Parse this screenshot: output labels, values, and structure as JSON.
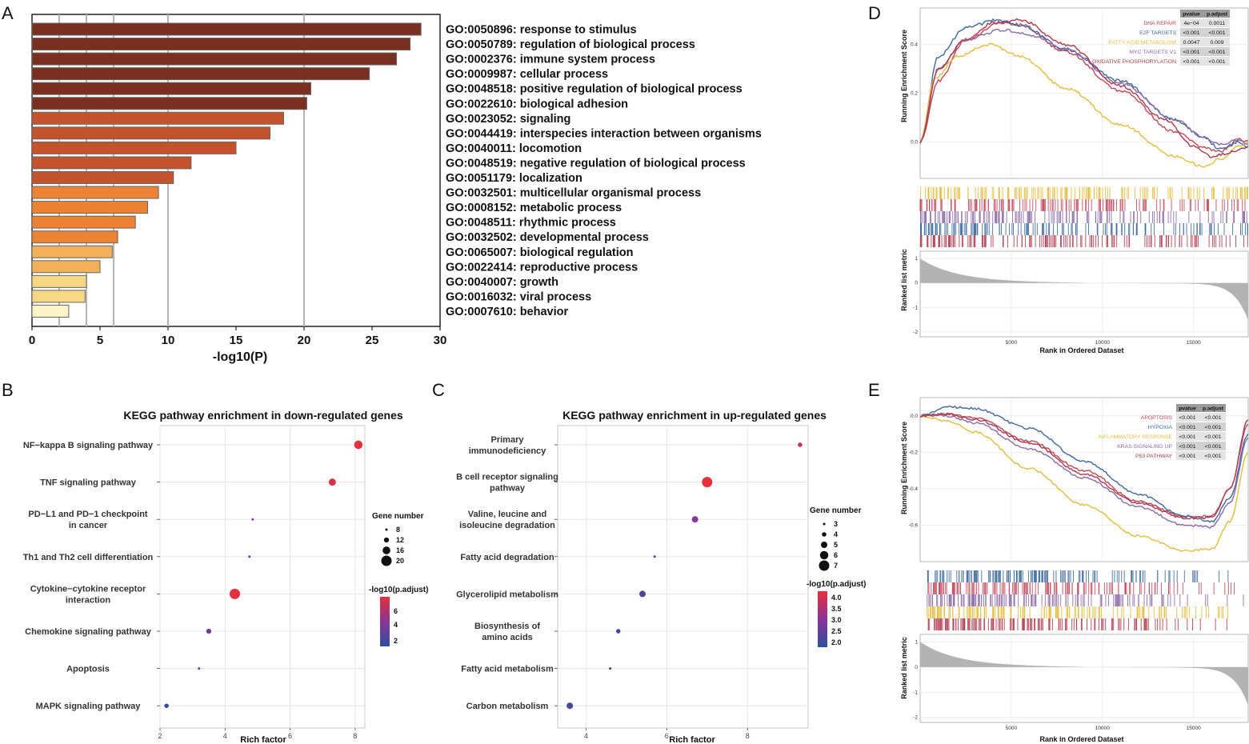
{
  "panel_labels": {
    "a": "A",
    "b": "B",
    "c": "C",
    "d": "D",
    "e": "E"
  },
  "chart_data": [
    {
      "id": "A",
      "type": "bar",
      "orientation": "horizontal",
      "xlabel": "-log10(P)",
      "xlim": [
        0,
        30
      ],
      "xticks": [
        0,
        5,
        10,
        15,
        20,
        25,
        30
      ],
      "gridlines": [
        2,
        4,
        6,
        10,
        20
      ],
      "categories": [
        "GO:0050896: response to stimulus",
        "GO:0050789: regulation of biological process",
        "GO:0002376: immune system process",
        "GO:0009987: cellular process",
        "GO:0048518: positive regulation of biological process",
        "GO:0022610: biological adhesion",
        "GO:0023052: signaling",
        "GO:0044419: interspecies interaction between organisms",
        "GO:0040011: locomotion",
        "GO:0048519: negative regulation of biological process",
        "GO:0051179: localization",
        "GO:0032501: multicellular organismal process",
        "GO:0008152: metabolic process",
        "GO:0048511: rhythmic process",
        "GO:0032502: developmental process",
        "GO:0065007: biological regulation",
        "GO:0022414: reproductive process",
        "GO:0040007: growth",
        "GO:0016032: viral process",
        "GO:0007610: behavior"
      ],
      "values": [
        28.6,
        27.8,
        26.8,
        24.8,
        20.5,
        20.2,
        18.5,
        17.5,
        15.0,
        11.7,
        10.4,
        9.3,
        8.5,
        7.6,
        6.3,
        5.9,
        5.0,
        4.0,
        3.9,
        2.7
      ],
      "colors": [
        "#7a3021",
        "#7a3021",
        "#7a3021",
        "#7a3021",
        "#7a3021",
        "#7a3021",
        "#c4522a",
        "#c4522a",
        "#c4522a",
        "#c4522a",
        "#c4522a",
        "#ec8234",
        "#ec8234",
        "#ec8234",
        "#ec8234",
        "#f2b156",
        "#f2b156",
        "#f6d884",
        "#f6d884",
        "#fdf3c8"
      ]
    },
    {
      "id": "B",
      "type": "scatter",
      "title": "KEGG pathway enrichment in down-regulated genes",
      "xlabel": "Rich factor",
      "xlim": [
        2,
        8.3
      ],
      "xticks": [
        2,
        4,
        6,
        8
      ],
      "categories": [
        "NF−kappa B signaling pathway",
        "TNF signaling pathway",
        "PD−L1 and PD−1 checkpoint in cancer",
        "Th1 and Th2 cell differentiation",
        "Cytokine−cytokine receptor interaction",
        "Chemokine signaling pathway",
        "Apoptosis",
        "MAPK signaling pathway"
      ],
      "label_lines": [
        [
          "NF−kappa B signaling pathway"
        ],
        [
          "TNF signaling pathway"
        ],
        [
          "PD−L1 and PD−1 checkpoint",
          "in cancer"
        ],
        [
          "Th1 and Th2 cell differentiation"
        ],
        [
          "Cytokine−cytokine receptor",
          "interaction"
        ],
        [
          "Chemokine signaling pathway"
        ],
        [
          "Apoptosis"
        ],
        [
          "MAPK signaling pathway"
        ]
      ],
      "x": [
        8.1,
        7.3,
        4.85,
        4.75,
        4.3,
        3.5,
        3.2,
        2.2
      ],
      "gene_number": [
        17,
        15,
        8,
        8,
        20,
        12,
        8,
        11
      ],
      "neg_log10_padj": [
        6.5,
        6.2,
        4.2,
        4.0,
        6.4,
        3.9,
        3.5,
        2.3
      ],
      "legend_size_title": "Gene number",
      "legend_sizes": [
        8,
        12,
        16,
        20
      ],
      "legend_color_title": "-log10(p.adjust)",
      "legend_color_ticks": [
        "6",
        "4",
        "2"
      ]
    },
    {
      "id": "C",
      "type": "scatter",
      "title": "KEGG pathway enrichment in up-regulated genes",
      "xlabel": "Rich factor",
      "xlim": [
        3.3,
        9.5
      ],
      "xticks": [
        4,
        6,
        8
      ],
      "categories": [
        "Primary immunodeficiency",
        "B cell receptor signaling pathway",
        "Valine, leucine and isoleucine degradation",
        "Fatty acid degradation",
        "Glycerolipid metabolism",
        "Biosynthesis of amino acids",
        "Fatty acid metabolism",
        "Carbon metabolism"
      ],
      "label_lines": [
        [
          "Primary",
          "immunodeficiency"
        ],
        [
          "B cell receptor signaling",
          "pathway"
        ],
        [
          "Valine, leucine and",
          "isoleucine degradation"
        ],
        [
          "Fatty acid degradation"
        ],
        [
          "Glycerolipid metabolism"
        ],
        [
          "Biosynthesis of",
          "amino acids"
        ],
        [
          "Fatty acid metabolism"
        ],
        [
          "Carbon metabolism"
        ]
      ],
      "x": [
        9.3,
        7.0,
        6.7,
        5.7,
        5.4,
        4.8,
        4.6,
        3.6
      ],
      "gene_number": [
        4,
        7,
        5,
        3,
        5,
        4,
        3,
        5
      ],
      "neg_log10_padj": [
        3.7,
        4.1,
        3.1,
        2.2,
        2.5,
        2.3,
        2.1,
        2.4
      ],
      "legend_size_title": "Gene number",
      "legend_sizes": [
        3,
        4,
        5,
        6,
        7
      ],
      "legend_color_title": "-log10(p.adjust)",
      "legend_color_ticks": [
        "4.0",
        "3.5",
        "3.0",
        "2.5",
        "2.0"
      ]
    },
    {
      "id": "D",
      "type": "line",
      "ylabel": "Running Enrichment Score",
      "ylabel2": "Ranked list metric",
      "xlabel": "Rank in Ordered Dataset",
      "xlim": [
        0,
        18000
      ],
      "xticks": [
        "5000",
        "10000",
        "15000"
      ],
      "yticks": [
        "0.4",
        "0.2",
        "0.0"
      ],
      "yticks2": [
        "1",
        "0",
        "-1",
        "-2"
      ],
      "table_headers": [
        "pvalue",
        "p.adjust"
      ],
      "series": [
        {
          "name": "DNA REPAIR",
          "color": "#c0485a",
          "pvalue": "4e−04",
          "padjust": "0.0011",
          "x": [
            0,
            1000,
            2500,
            4500,
            5500,
            8000,
            11000,
            14000,
            15500,
            16500,
            17500,
            18000
          ],
          "y": [
            0.0,
            0.25,
            0.42,
            0.49,
            0.48,
            0.37,
            0.21,
            0.04,
            -0.02,
            -0.04,
            0.01,
            0.0
          ]
        },
        {
          "name": "E2F TARGETS",
          "color": "#3e6a9e",
          "pvalue": "<0.001",
          "padjust": "<0.001",
          "x": [
            0,
            1000,
            2500,
            4200,
            5500,
            8000,
            11000,
            14000,
            15500,
            16500,
            17500,
            18000
          ],
          "y": [
            0.0,
            0.35,
            0.47,
            0.5,
            0.48,
            0.38,
            0.25,
            0.09,
            0.02,
            -0.03,
            0.0,
            -0.02
          ]
        },
        {
          "name": "FATTY ACID METABOLISM",
          "color": "#e4bd3e",
          "pvalue": "0.0047",
          "padjust": "0.009",
          "x": [
            0,
            800,
            2000,
            3800,
            5500,
            8000,
            11000,
            14000,
            15500,
            16500,
            17500,
            18000
          ],
          "y": [
            0.0,
            0.26,
            0.35,
            0.4,
            0.35,
            0.22,
            0.07,
            -0.06,
            -0.1,
            -0.07,
            -0.02,
            0.0
          ]
        },
        {
          "name": "MYC TARGETS V1",
          "color": "#8c6aa8",
          "pvalue": "<0.001",
          "padjust": "<0.001",
          "x": [
            0,
            1000,
            2500,
            4500,
            6000,
            8000,
            11000,
            14000,
            15500,
            16500,
            17500,
            18000
          ],
          "y": [
            0.0,
            0.3,
            0.42,
            0.46,
            0.44,
            0.38,
            0.24,
            0.09,
            0.02,
            -0.01,
            0.01,
            -0.01
          ]
        },
        {
          "name": "OXIDATIVE PHOSPHORYLATION",
          "color": "#b03a4e",
          "pvalue": "<0.001",
          "padjust": "<0.001",
          "x": [
            0,
            1000,
            2500,
            4000,
            5500,
            8000,
            11000,
            13500,
            15000,
            16000,
            17200,
            18000
          ],
          "y": [
            0.0,
            0.3,
            0.42,
            0.49,
            0.5,
            0.4,
            0.23,
            0.09,
            -0.02,
            -0.06,
            -0.04,
            -0.02
          ]
        }
      ]
    },
    {
      "id": "E",
      "type": "line",
      "ylabel": "Running Enrichment Score",
      "ylabel2": "Ranked list metric",
      "xlabel": "Rank in Ordered Dataset",
      "xlim": [
        0,
        18000
      ],
      "xticks": [
        "5000",
        "10000",
        "15000"
      ],
      "yticks": [
        "0.0",
        "-0.2",
        "-0.4",
        "-0.6"
      ],
      "yticks2": [
        "1",
        "0",
        "-1",
        "-2"
      ],
      "table_headers": [
        "pvalue",
        "p.adjust"
      ],
      "series": [
        {
          "name": "APOPTOSIS",
          "color": "#c0485a",
          "pvalue": "<0.001",
          "padjust": "<0.001",
          "x": [
            0,
            1500,
            3000,
            6000,
            9000,
            12000,
            14500,
            16000,
            17000,
            18000
          ],
          "y": [
            0.0,
            0.01,
            -0.01,
            -0.14,
            -0.3,
            -0.47,
            -0.55,
            -0.55,
            -0.4,
            -0.05
          ]
        },
        {
          "name": "HYPOXIA",
          "color": "#3e6a9e",
          "pvalue": "<0.001",
          "padjust": "<0.001",
          "x": [
            0,
            1500,
            3000,
            6000,
            9000,
            12000,
            14500,
            16000,
            17000,
            18000
          ],
          "y": [
            0.0,
            0.05,
            0.04,
            -0.07,
            -0.25,
            -0.43,
            -0.55,
            -0.58,
            -0.45,
            -0.1
          ]
        },
        {
          "name": "INFLAMMATORY RESPONSE",
          "color": "#e4bd3e",
          "pvalue": "<0.001",
          "padjust": "<0.001",
          "x": [
            0,
            1500,
            3000,
            6000,
            9000,
            12000,
            14500,
            16000,
            17000,
            18000
          ],
          "y": [
            0.0,
            -0.03,
            -0.09,
            -0.29,
            -0.49,
            -0.66,
            -0.74,
            -0.73,
            -0.58,
            -0.2
          ]
        },
        {
          "name": "KRAS SIGNALING UP",
          "color": "#8c6aa8",
          "pvalue": "<0.001",
          "padjust": "<0.001",
          "x": [
            0,
            1500,
            3000,
            6000,
            9000,
            12000,
            14500,
            16000,
            17000,
            18000
          ],
          "y": [
            0.0,
            0.0,
            -0.04,
            -0.18,
            -0.34,
            -0.5,
            -0.6,
            -0.61,
            -0.48,
            -0.12
          ]
        },
        {
          "name": "P53 PATHWAY",
          "color": "#b03a4e",
          "pvalue": "<0.001",
          "padjust": "<0.001",
          "x": [
            0,
            1500,
            3000,
            6000,
            9000,
            12000,
            14500,
            16000,
            17000,
            18000
          ],
          "y": [
            0.0,
            0.01,
            -0.02,
            -0.15,
            -0.32,
            -0.48,
            -0.56,
            -0.56,
            -0.4,
            -0.02
          ]
        }
      ]
    }
  ]
}
